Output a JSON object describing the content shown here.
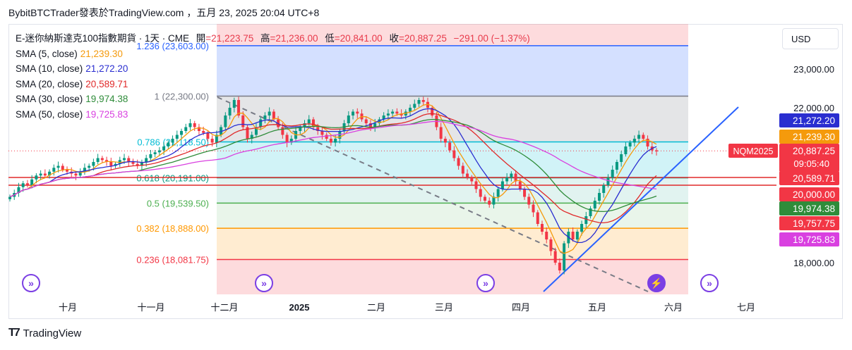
{
  "header": {
    "title": "BybitBTCTrader發表於TradingView.com ，五月 23, 2025 20:04 UTC+8"
  },
  "currency_button": "USD",
  "footer": {
    "brand": "TradingView"
  },
  "legend": {
    "symbol": "E-迷你納斯達克100指數期貨 · 1天 · CME",
    "open_label": "開",
    "open": "=21,223.75",
    "high_label": "高",
    "high": "=21,236.00",
    "low_label": "低",
    "low": "=20,841.00",
    "close_label": "收",
    "close": "=20,887.25",
    "change": "−291.00 (−1.37%)",
    "sma": [
      {
        "label": "SMA (5, close)",
        "value": "21,239.30",
        "color": "#f59a0c"
      },
      {
        "label": "SMA (10, close)",
        "value": "21,272.20",
        "color": "#2a2ed0"
      },
      {
        "label": "SMA (20, close)",
        "value": "20,589.71",
        "color": "#e02a2a"
      },
      {
        "label": "SMA (30, close)",
        "value": "19,974.38",
        "color": "#2f8c3a"
      },
      {
        "label": "SMA (50, close)",
        "value": "19,725.83",
        "color": "#d940e0"
      }
    ]
  },
  "chart_data": {
    "type": "candlestick",
    "y_axis_ticks": [
      18000,
      22000,
      23000
    ],
    "y_tick_labels": [
      "18,000.00",
      "22,000.00",
      "23,000.00"
    ],
    "x_axis_labels": [
      "十月",
      "十一月",
      "十二月",
      "2025",
      "二月",
      "三月",
      "四月",
      "五月",
      "六月",
      "七月"
    ],
    "fib_levels": [
      {
        "ratio": "1.236",
        "price": 23603.0,
        "label": "1.236 (23,603.00)",
        "color": "#2962ff"
      },
      {
        "ratio": "1",
        "price": 22300.0,
        "label": "1 (22,300.00)",
        "color": "#787b86"
      },
      {
        "ratio": "0.786",
        "price": 21118.5,
        "label": "0.786 (21,118.50)",
        "color": "#00bcd4"
      },
      {
        "ratio": "0.618",
        "price": 20191.0,
        "label": "0.618 (20,191.00)",
        "color": "#089981"
      },
      {
        "ratio": "0.5",
        "price": 19539.5,
        "label": "0.5 (19,539.50)",
        "color": "#4caf50"
      },
      {
        "ratio": "0.382",
        "price": 18888.0,
        "label": "0.382 (18,888.00)",
        "color": "#ff9800"
      },
      {
        "ratio": "0.236",
        "price": 18081.75,
        "label": "0.236 (18,081.75)",
        "color": "#f23645"
      }
    ],
    "horizontal_lines": [
      20200,
      20000
    ],
    "price_tags": [
      {
        "text": "21,272.20",
        "price": 21272.2,
        "color": "#2a2ed0"
      },
      {
        "text": "21,239.30",
        "price": 21239.3,
        "color": "#f59a0c"
      },
      {
        "text": "20,887.25",
        "sub": "09:05:40",
        "price": 20887.25,
        "color": "#f23645"
      },
      {
        "text": "20,589.71",
        "price": 20589.71,
        "color": "#f23645"
      },
      {
        "text": "20,000.00",
        "price": 20000.0,
        "color": "#f23645"
      },
      {
        "text": "19,974.38",
        "price": 19974.38,
        "color": "#2f8c3a"
      },
      {
        "text": "19,757.75",
        "price": 19757.75,
        "color": "#f23645"
      },
      {
        "text": "19,725.83",
        "price": 19725.83,
        "color": "#d940e0"
      }
    ],
    "symbol_tag": "NQM2025",
    "close_series": [
      19700,
      19800,
      19950,
      20050,
      20000,
      20150,
      20250,
      20300,
      20250,
      20350,
      20450,
      20500,
      20400,
      20350,
      20300,
      20250,
      20350,
      20450,
      20500,
      20600,
      20700,
      20650,
      20600,
      20500,
      20550,
      20650,
      20700,
      20600,
      20550,
      20500,
      20600,
      20700,
      20800,
      20850,
      20900,
      21000,
      21100,
      21200,
      21300,
      21400,
      21500,
      21600,
      21500,
      21400,
      21350,
      21200,
      21100,
      21300,
      21500,
      21800,
      22000,
      22200,
      21800,
      21500,
      21200,
      21300,
      21500,
      21700,
      21800,
      21900,
      21700,
      21500,
      21300,
      21100,
      21200,
      21400,
      21500,
      21600,
      21700,
      21500,
      21400,
      21300,
      21200,
      21100,
      21200,
      21400,
      21600,
      21800,
      21900,
      21850,
      21700,
      21600,
      21500,
      21600,
      21700,
      21800,
      21850,
      21900,
      21850,
      21800,
      21900,
      22000,
      22100,
      22200,
      22150,
      22000,
      21800,
      21500,
      21200,
      21100,
      20900,
      20700,
      20500,
      20300,
      20200,
      20100,
      19900,
      19700,
      19600,
      19500,
      19700,
      19900,
      20100,
      20200,
      20300,
      20100,
      19900,
      19700,
      19500,
      19300,
      19000,
      18800,
      18600,
      18300,
      18000,
      17800,
      18500,
      18800,
      18600,
      18800,
      19000,
      19200,
      19400,
      19600,
      19800,
      20000,
      20200,
      20400,
      20600,
      20800,
      21000,
      21100,
      21200,
      21300,
      21200,
      21000,
      20900,
      20887
    ]
  },
  "sma_series": {
    "sma5": [],
    "note_values_shown": [
      "21,239.30",
      "21,272.20",
      "20,589.71",
      "19,974.38",
      "19,725.83"
    ]
  }
}
